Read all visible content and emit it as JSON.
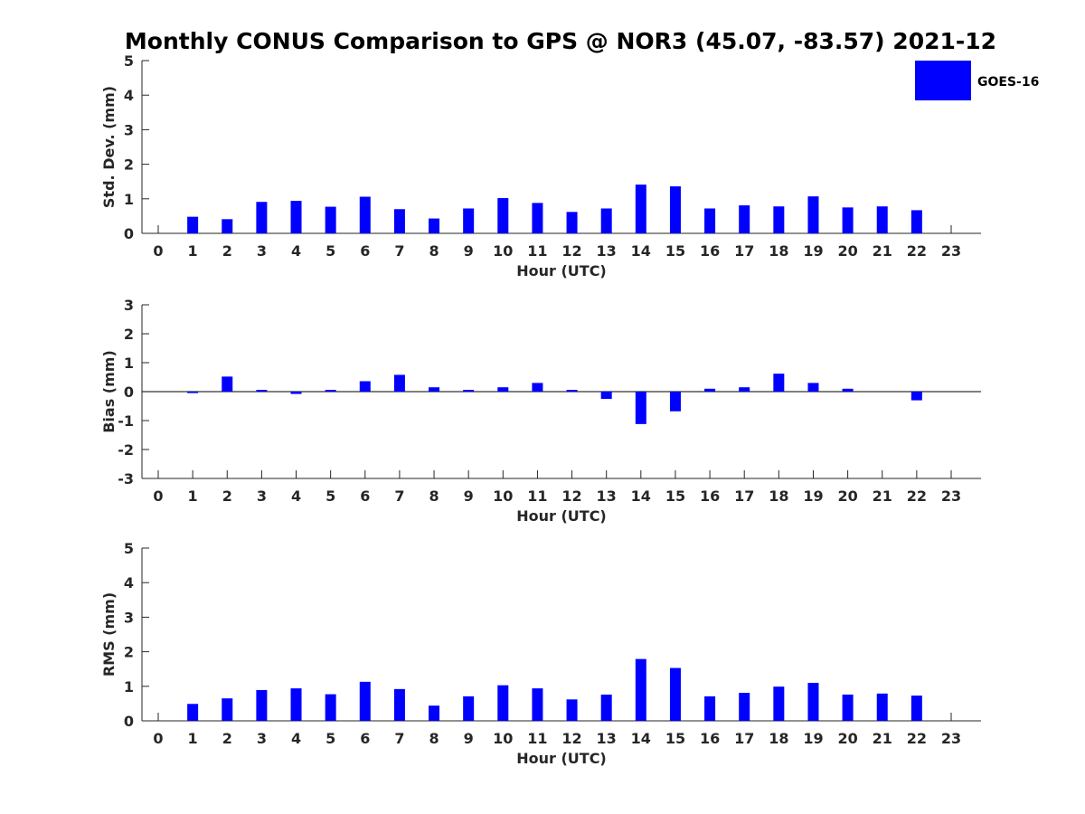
{
  "figure": {
    "title": "Monthly CONUS Comparison to GPS @ NOR3 (45.07, -83.57) 2021-12",
    "bar_color": "#0000ff"
  },
  "legend": {
    "label": "GOES-16",
    "placement": "top-right"
  },
  "chart_data": [
    {
      "type": "bar",
      "title": "",
      "xlabel": "Hour (UTC)",
      "ylabel": "Std. Dev. (mm)",
      "ylim": [
        0,
        5
      ],
      "yticks": [
        0,
        1,
        2,
        3,
        4,
        5
      ],
      "categories": [
        "0",
        "1",
        "2",
        "3",
        "4",
        "5",
        "6",
        "7",
        "8",
        "9",
        "10",
        "11",
        "12",
        "13",
        "14",
        "15",
        "16",
        "17",
        "18",
        "19",
        "20",
        "21",
        "22",
        "23"
      ],
      "series": [
        {
          "name": "GOES-16",
          "values": [
            null,
            0.48,
            0.41,
            0.91,
            0.94,
            0.77,
            1.06,
            0.7,
            0.43,
            0.72,
            1.02,
            0.88,
            0.62,
            0.72,
            1.41,
            1.36,
            0.72,
            0.81,
            0.78,
            1.07,
            0.75,
            0.78,
            0.67,
            null
          ]
        }
      ]
    },
    {
      "type": "bar",
      "title": "",
      "xlabel": "Hour (UTC)",
      "ylabel": "Bias (mm)",
      "ylim": [
        -3,
        3
      ],
      "yticks": [
        -3,
        -2,
        -1,
        0,
        1,
        2,
        3
      ],
      "categories": [
        "0",
        "1",
        "2",
        "3",
        "4",
        "5",
        "6",
        "7",
        "8",
        "9",
        "10",
        "11",
        "12",
        "13",
        "14",
        "15",
        "16",
        "17",
        "18",
        "19",
        "20",
        "21",
        "22",
        "23"
      ],
      "series": [
        {
          "name": "GOES-16",
          "values": [
            null,
            -0.05,
            0.52,
            0.06,
            -0.08,
            0.06,
            0.36,
            0.58,
            0.15,
            0.06,
            0.15,
            0.3,
            0.06,
            -0.25,
            -1.12,
            -0.68,
            0.1,
            0.15,
            0.62,
            0.3,
            0.1,
            0.0,
            -0.3,
            null
          ]
        }
      ]
    },
    {
      "type": "bar",
      "title": "",
      "xlabel": "Hour (UTC)",
      "ylabel": "RMS (mm)",
      "ylim": [
        0,
        5
      ],
      "yticks": [
        0,
        1,
        2,
        3,
        4,
        5
      ],
      "categories": [
        "0",
        "1",
        "2",
        "3",
        "4",
        "5",
        "6",
        "7",
        "8",
        "9",
        "10",
        "11",
        "12",
        "13",
        "14",
        "15",
        "16",
        "17",
        "18",
        "19",
        "20",
        "21",
        "22",
        "23"
      ],
      "series": [
        {
          "name": "GOES-16",
          "values": [
            null,
            0.49,
            0.65,
            0.89,
            0.94,
            0.77,
            1.13,
            0.92,
            0.44,
            0.71,
            1.03,
            0.94,
            0.62,
            0.76,
            1.79,
            1.53,
            0.71,
            0.81,
            0.99,
            1.1,
            0.76,
            0.79,
            0.73,
            null
          ]
        }
      ]
    }
  ]
}
